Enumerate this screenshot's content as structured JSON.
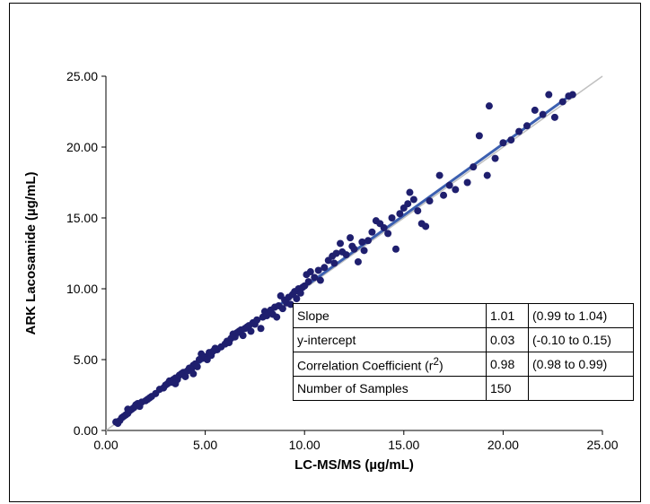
{
  "chart_data": {
    "type": "scatter",
    "title": "",
    "xlabel": "LC-MS/MS (µg/mL)",
    "ylabel": "ARK Lacosamide (µg/mL)",
    "xlim": [
      0,
      25
    ],
    "ylim": [
      0,
      25
    ],
    "x_ticks": [
      "0.00",
      "5.00",
      "10.00",
      "15.00",
      "20.00",
      "25.00"
    ],
    "y_ticks": [
      "0.00",
      "5.00",
      "10.00",
      "15.00",
      "20.00",
      "25.00"
    ],
    "grid": false,
    "point_color": "#1f1f6e",
    "fit_color": "#3b5fb0",
    "identity_color": "#c0c0c0",
    "regression": {
      "slope": 1.01,
      "intercept": 0.03,
      "x_range": [
        0.4,
        23.5
      ]
    },
    "identity_line": {
      "x_range": [
        0,
        25
      ]
    },
    "points": [
      [
        0.5,
        0.6
      ],
      [
        0.7,
        0.7
      ],
      [
        0.8,
        0.9
      ],
      [
        0.9,
        1.0
      ],
      [
        1.0,
        1.1
      ],
      [
        1.1,
        1.2
      ],
      [
        1.2,
        1.4
      ],
      [
        1.3,
        1.5
      ],
      [
        1.4,
        1.6
      ],
      [
        1.5,
        1.8
      ],
      [
        1.6,
        1.9
      ],
      [
        1.7,
        1.7
      ],
      [
        1.8,
        2.0
      ],
      [
        2.0,
        2.1
      ],
      [
        2.1,
        2.2
      ],
      [
        2.2,
        2.3
      ],
      [
        2.5,
        2.6
      ],
      [
        2.7,
        2.9
      ],
      [
        2.9,
        3.0
      ],
      [
        3.0,
        3.2
      ],
      [
        3.1,
        3.3
      ],
      [
        3.2,
        3.5
      ],
      [
        3.3,
        3.4
      ],
      [
        3.4,
        3.6
      ],
      [
        3.5,
        3.7
      ],
      [
        3.6,
        3.6
      ],
      [
        3.7,
        3.9
      ],
      [
        3.8,
        4.0
      ],
      [
        3.9,
        4.1
      ],
      [
        4.0,
        3.8
      ],
      [
        4.1,
        4.2
      ],
      [
        4.2,
        4.4
      ],
      [
        4.3,
        4.3
      ],
      [
        4.4,
        4.6
      ],
      [
        4.5,
        4.7
      ],
      [
        4.6,
        4.5
      ],
      [
        4.7,
        5.0
      ],
      [
        4.8,
        5.4
      ],
      [
        4.9,
        5.1
      ],
      [
        5.0,
        5.2
      ],
      [
        5.1,
        5.0
      ],
      [
        5.2,
        5.5
      ],
      [
        5.3,
        5.3
      ],
      [
        5.4,
        5.6
      ],
      [
        5.6,
        5.7
      ],
      [
        5.8,
        5.9
      ],
      [
        6.0,
        6.1
      ],
      [
        6.1,
        6.3
      ],
      [
        6.2,
        6.2
      ],
      [
        6.3,
        6.5
      ],
      [
        6.4,
        6.8
      ],
      [
        6.5,
        6.6
      ],
      [
        6.6,
        6.9
      ],
      [
        6.7,
        7.0
      ],
      [
        6.8,
        7.1
      ],
      [
        6.9,
        6.7
      ],
      [
        7.0,
        7.2
      ],
      [
        7.1,
        7.3
      ],
      [
        7.2,
        7.4
      ],
      [
        7.3,
        7.0
      ],
      [
        7.4,
        7.6
      ],
      [
        7.5,
        7.5
      ],
      [
        7.6,
        7.8
      ],
      [
        7.8,
        7.2
      ],
      [
        7.9,
        8.0
      ],
      [
        8.0,
        8.4
      ],
      [
        8.1,
        8.1
      ],
      [
        8.2,
        8.3
      ],
      [
        8.3,
        8.5
      ],
      [
        8.4,
        8.2
      ],
      [
        8.5,
        8.7
      ],
      [
        8.6,
        8.0
      ],
      [
        8.7,
        8.8
      ],
      [
        8.8,
        9.5
      ],
      [
        8.9,
        8.6
      ],
      [
        9.0,
        9.2
      ],
      [
        9.1,
        9.0
      ],
      [
        9.2,
        9.4
      ],
      [
        9.3,
        8.9
      ],
      [
        9.4,
        9.6
      ],
      [
        9.5,
        9.8
      ],
      [
        9.6,
        9.3
      ],
      [
        9.7,
        10.0
      ],
      [
        9.8,
        9.7
      ],
      [
        9.9,
        10.1
      ],
      [
        10.0,
        10.2
      ],
      [
        10.1,
        11.0
      ],
      [
        10.2,
        10.5
      ],
      [
        10.3,
        11.2
      ],
      [
        10.5,
        10.8
      ],
      [
        10.7,
        11.3
      ],
      [
        10.8,
        10.6
      ],
      [
        11.0,
        11.5
      ],
      [
        11.2,
        12.0
      ],
      [
        11.4,
        12.3
      ],
      [
        11.5,
        11.8
      ],
      [
        11.6,
        12.5
      ],
      [
        11.8,
        13.2
      ],
      [
        11.9,
        12.6
      ],
      [
        12.1,
        12.4
      ],
      [
        12.3,
        13.6
      ],
      [
        12.4,
        13.0
      ],
      [
        12.5,
        12.8
      ],
      [
        12.7,
        11.9
      ],
      [
        12.9,
        13.3
      ],
      [
        13.0,
        12.7
      ],
      [
        13.2,
        13.4
      ],
      [
        13.4,
        14.0
      ],
      [
        13.6,
        14.8
      ],
      [
        13.8,
        14.6
      ],
      [
        14.0,
        14.3
      ],
      [
        14.2,
        13.9
      ],
      [
        14.4,
        15.0
      ],
      [
        14.6,
        12.8
      ],
      [
        14.8,
        15.3
      ],
      [
        15.0,
        15.7
      ],
      [
        15.2,
        16.0
      ],
      [
        15.3,
        16.8
      ],
      [
        15.5,
        16.3
      ],
      [
        15.7,
        15.5
      ],
      [
        15.9,
        14.6
      ],
      [
        16.1,
        14.4
      ],
      [
        16.3,
        16.2
      ],
      [
        16.8,
        18.0
      ],
      [
        17.0,
        16.6
      ],
      [
        17.3,
        17.3
      ],
      [
        17.6,
        17.0
      ],
      [
        18.2,
        17.5
      ],
      [
        18.5,
        18.6
      ],
      [
        18.8,
        20.8
      ],
      [
        19.2,
        18.0
      ],
      [
        19.3,
        22.9
      ],
      [
        19.6,
        19.2
      ],
      [
        20.0,
        20.3
      ],
      [
        20.4,
        20.5
      ],
      [
        20.8,
        21.1
      ],
      [
        21.2,
        21.5
      ],
      [
        21.6,
        22.6
      ],
      [
        22.0,
        22.3
      ],
      [
        22.3,
        23.7
      ],
      [
        22.6,
        22.1
      ],
      [
        23.0,
        23.2
      ],
      [
        23.3,
        23.6
      ],
      [
        23.5,
        23.7
      ],
      [
        0.6,
        0.5
      ],
      [
        1.1,
        1.5
      ],
      [
        2.3,
        2.4
      ],
      [
        3.5,
        3.3
      ],
      [
        4.4,
        4.0
      ],
      [
        5.5,
        5.8
      ]
    ],
    "stats_table": [
      {
        "label": "Slope",
        "value": "1.01",
        "ci": "(0.99 to 1.04)"
      },
      {
        "label": "y-intercept",
        "value": "0.03",
        "ci": "(-0.10 to 0.15)"
      },
      {
        "label": "Correlation Coefficient (r",
        "label_sup": "2",
        "label_end": ")",
        "value": "0.98",
        "ci": "(0.98 to 0.99)"
      },
      {
        "label": "Number of Samples",
        "value": "150",
        "ci": ""
      }
    ]
  }
}
